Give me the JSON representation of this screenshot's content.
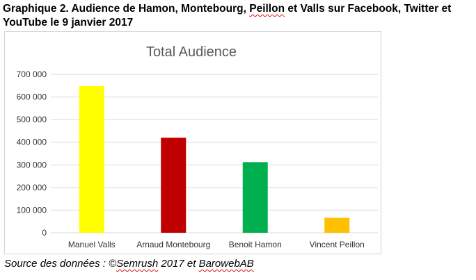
{
  "heading": {
    "part1": "Graphique 2. Audience de Hamon, Montebourg, ",
    "part2": "Peillon",
    "part3": " et Valls sur Facebook, Twitter et YouTube le 9 janvier 2017"
  },
  "chart_data": {
    "type": "bar",
    "title": "Total Audience",
    "xlabel": "",
    "ylabel": "",
    "categories": [
      "Manuel Valls",
      "Arnaud Montebourg",
      "Benoit Hamon",
      "Vincent Peillon"
    ],
    "values": [
      648000,
      420000,
      312000,
      66000
    ],
    "colors": [
      "#ffff00",
      "#c00000",
      "#00b050",
      "#ffc000"
    ],
    "ylim": [
      0,
      700000
    ],
    "yticks": [
      0,
      100000,
      200000,
      300000,
      400000,
      500000,
      600000,
      700000
    ],
    "ytick_labels": [
      "0",
      "100 000",
      "200 000",
      "300 000",
      "400 000",
      "500 000",
      "600 000",
      "700 000"
    ],
    "grid": true,
    "legend": "none"
  },
  "source": {
    "prefix": "Source des données : ©",
    "semrush": "Semrush",
    "middle": " 2017 et ",
    "barowebab": "BarowebAB"
  }
}
